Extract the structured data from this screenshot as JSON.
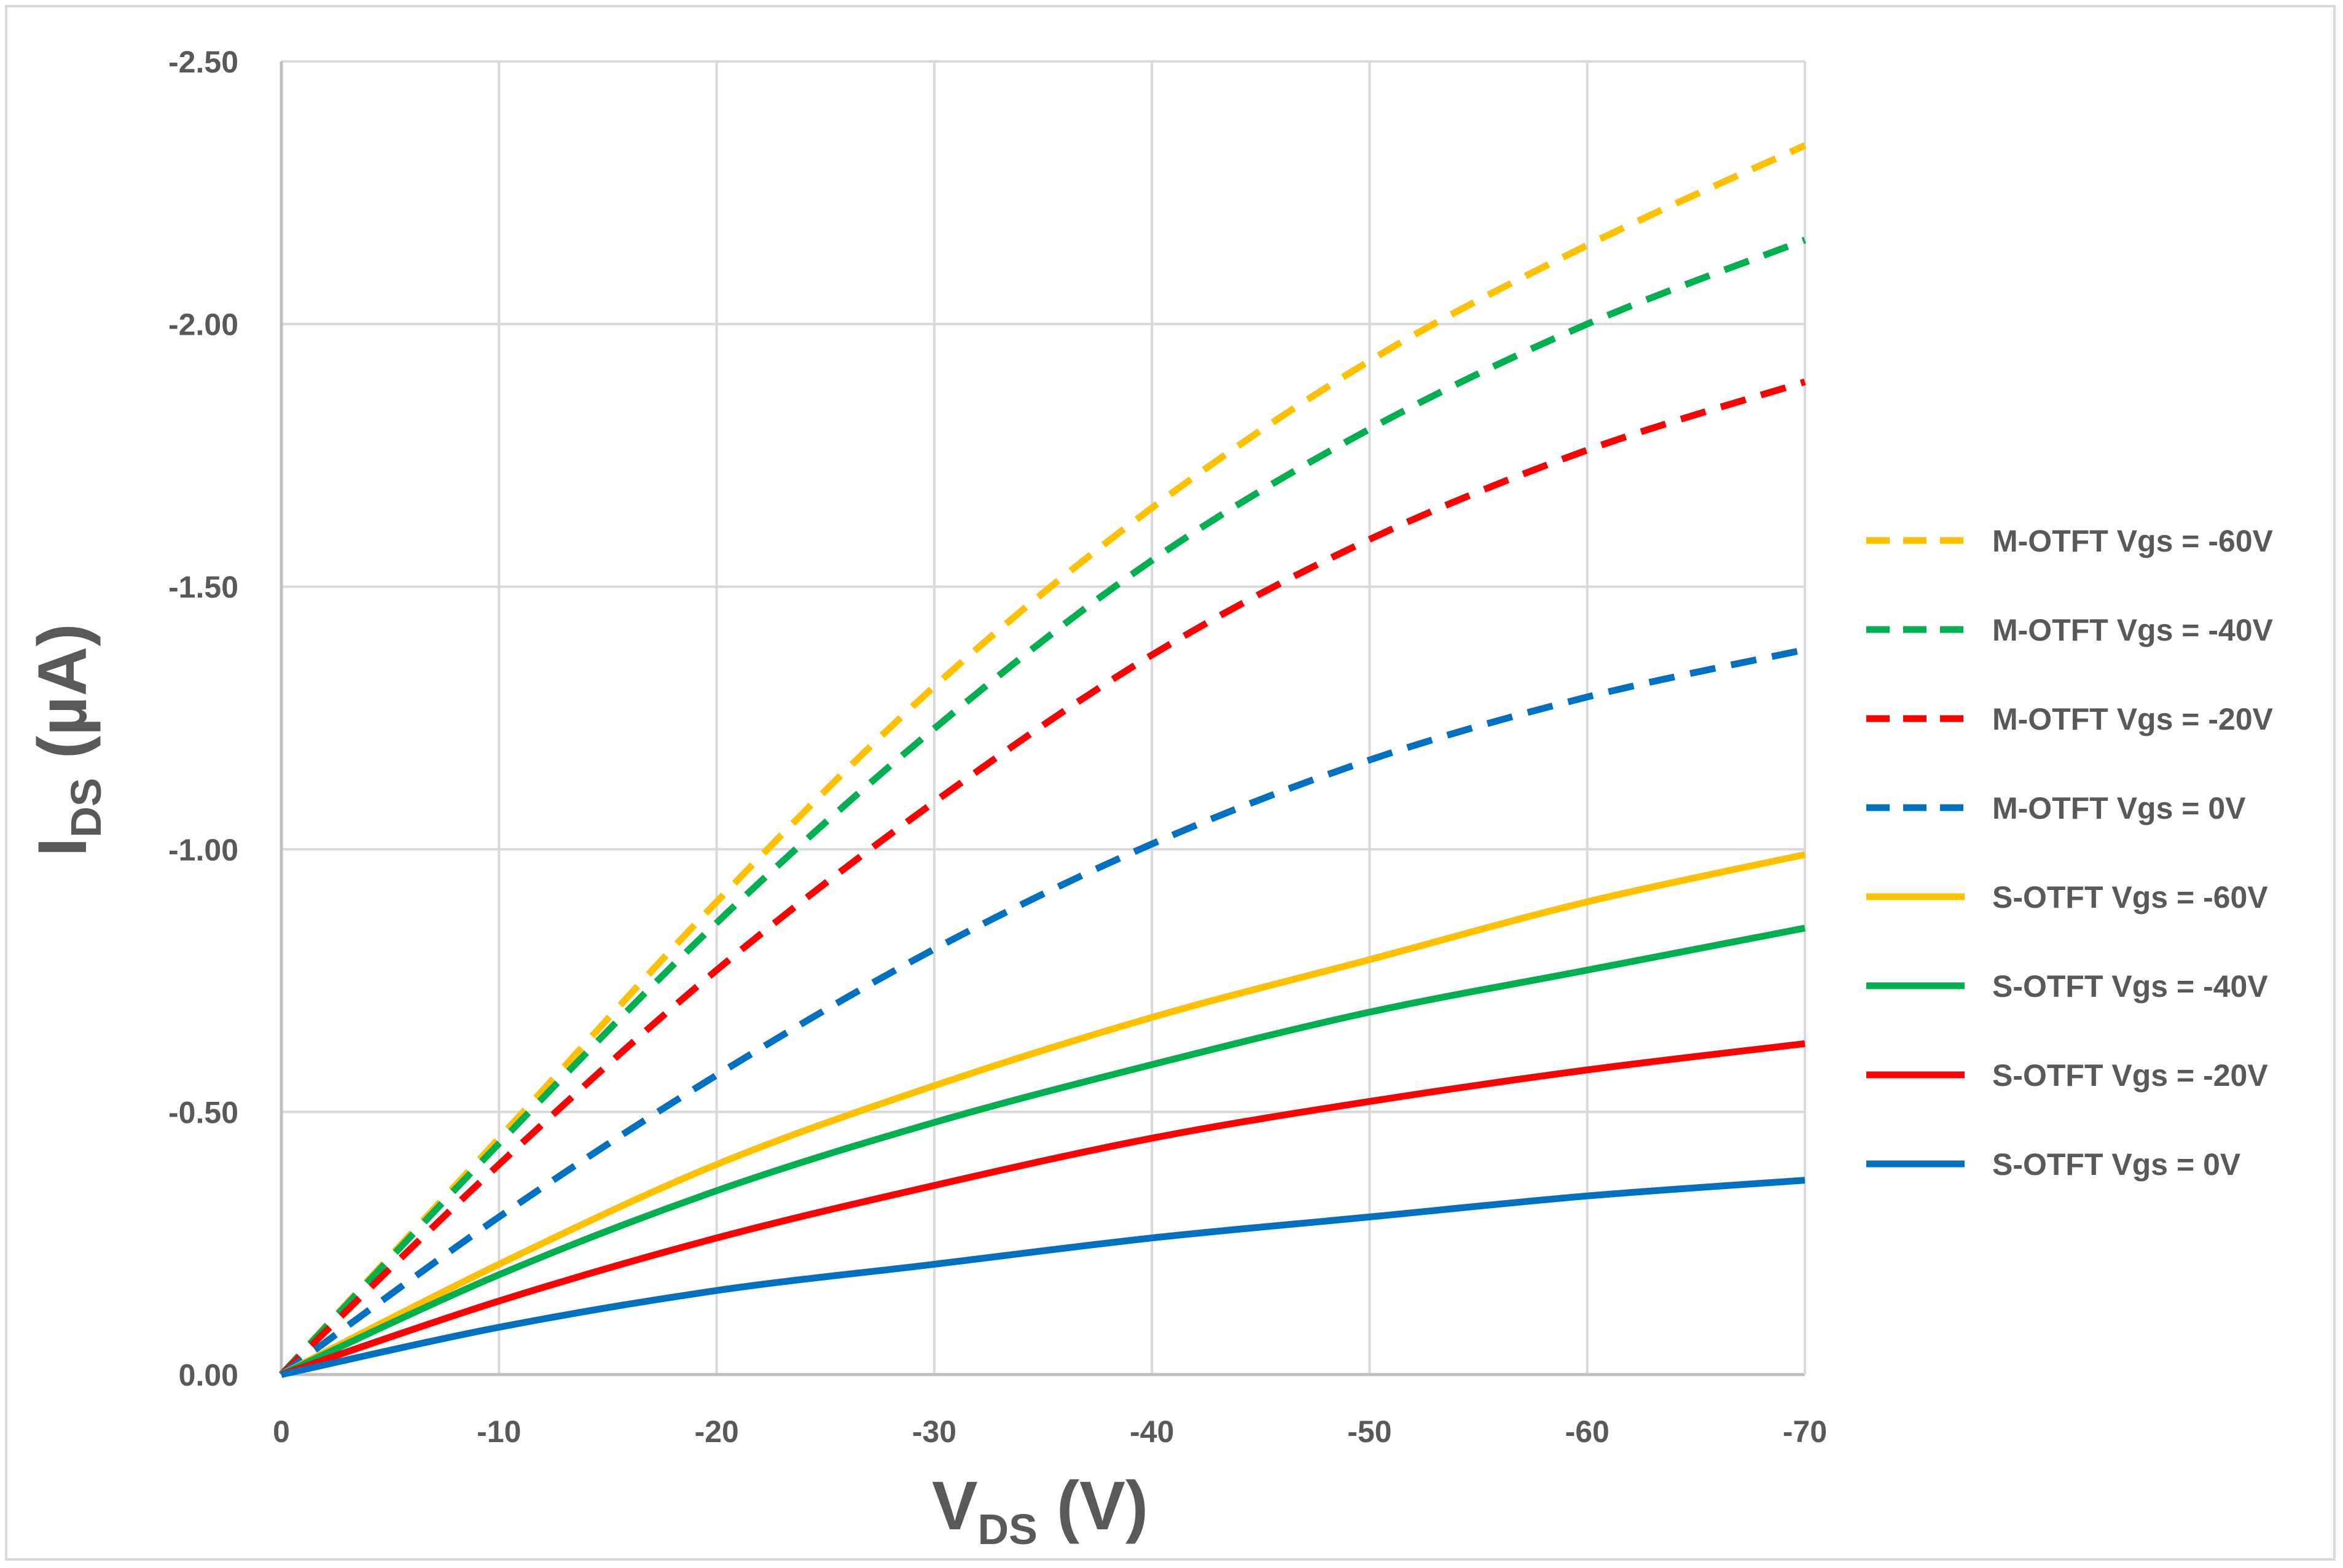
{
  "chart_data": {
    "type": "line",
    "title": "",
    "xlabel": "VDS (V)",
    "ylabel": "IDS (µA)",
    "xlabel_parts": {
      "main": "V",
      "sub": "DS",
      "rest": " (V)"
    },
    "ylabel_parts": {
      "main": "I",
      "sub": "DS",
      "rest": " (µA)"
    },
    "xlim": [
      0,
      -70
    ],
    "ylim": [
      0,
      -2.5
    ],
    "x_ticks": [
      0,
      -10,
      -20,
      -30,
      -40,
      -50,
      -60,
      -70
    ],
    "x_tick_labels": [
      "0",
      "-10",
      "-20",
      "-30",
      "-40",
      "-50",
      "-60",
      "-70"
    ],
    "y_ticks": [
      0,
      -0.5,
      -1.0,
      -1.5,
      -2.0,
      -2.5
    ],
    "y_tick_labels": [
      "0.00",
      "-0.50",
      "-1.00",
      "-1.50",
      "-2.00",
      "-2.50"
    ],
    "grid": true,
    "legend_position": "right",
    "x": [
      0,
      -10,
      -20,
      -30,
      -40,
      -50,
      -60,
      -70
    ],
    "series": [
      {
        "name": "M-OTFT Vgs = -60V",
        "color": "#FFC000",
        "style": "dashed",
        "values": [
          0,
          -0.45,
          -0.9,
          -1.31,
          -1.65,
          -1.93,
          -2.15,
          -2.34
        ]
      },
      {
        "name": "M-OTFT Vgs = -40V",
        "color": "#00B050",
        "style": "dashed",
        "values": [
          0,
          -0.44,
          -0.86,
          -1.23,
          -1.55,
          -1.8,
          -2.0,
          -2.16
        ]
      },
      {
        "name": "M-OTFT Vgs = -20V",
        "color": "#FF0000",
        "style": "dashed",
        "values": [
          0,
          -0.4,
          -0.77,
          -1.09,
          -1.37,
          -1.59,
          -1.76,
          -1.89
        ]
      },
      {
        "name": "M-OTFT Vgs = 0V",
        "color": "#0070C0",
        "style": "dashed",
        "values": [
          0,
          -0.3,
          -0.57,
          -0.81,
          -1.01,
          -1.17,
          -1.29,
          -1.38
        ]
      },
      {
        "name": "S-OTFT Vgs = -60V",
        "color": "#FFC000",
        "style": "solid",
        "values": [
          0,
          -0.21,
          -0.4,
          -0.55,
          -0.68,
          -0.79,
          -0.9,
          -0.99
        ]
      },
      {
        "name": "S-OTFT Vgs = -40V",
        "color": "#00B050",
        "style": "solid",
        "values": [
          0,
          -0.19,
          -0.35,
          -0.48,
          -0.59,
          -0.69,
          -0.77,
          -0.85
        ]
      },
      {
        "name": "S-OTFT Vgs = -20V",
        "color": "#FF0000",
        "style": "solid",
        "values": [
          0,
          -0.14,
          -0.26,
          -0.36,
          -0.45,
          -0.52,
          -0.58,
          -0.63
        ]
      },
      {
        "name": "S-OTFT Vgs = 0V",
        "color": "#0070C0",
        "style": "solid",
        "values": [
          0,
          -0.09,
          -0.16,
          -0.21,
          -0.26,
          -0.3,
          -0.34,
          -0.37
        ]
      }
    ]
  }
}
